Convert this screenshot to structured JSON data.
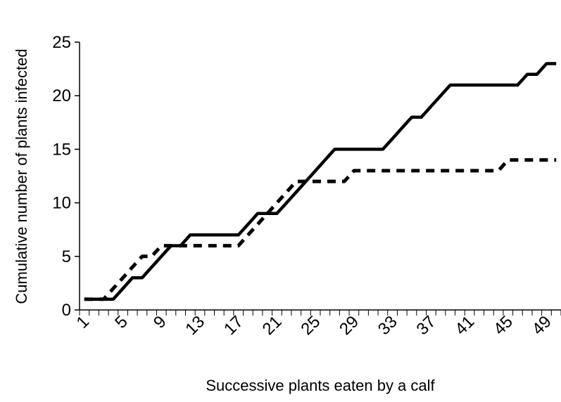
{
  "chart_data": {
    "type": "line",
    "title": "",
    "xlabel": "Successive plants eaten by a calf",
    "ylabel": "Cumulative number of plants infected",
    "x": [
      1,
      2,
      3,
      4,
      5,
      6,
      7,
      8,
      9,
      10,
      11,
      12,
      13,
      14,
      15,
      16,
      17,
      18,
      19,
      20,
      21,
      22,
      23,
      24,
      25,
      26,
      27,
      28,
      29,
      30,
      31,
      32,
      33,
      34,
      35,
      36,
      37,
      38,
      39,
      40,
      41,
      42,
      43,
      44,
      45,
      46,
      47,
      48,
      49,
      50
    ],
    "x_tick_labels": [
      "1",
      "5",
      "9",
      "13",
      "17",
      "21",
      "25",
      "29",
      "33",
      "37",
      "41",
      "45",
      "49"
    ],
    "ylim": [
      0,
      25
    ],
    "y_tick_labels": [
      "0",
      "5",
      "10",
      "15",
      "20",
      "25"
    ],
    "grid": false,
    "legend": "none",
    "series": [
      {
        "style": "solid",
        "color": "#000000",
        "values": [
          1,
          1,
          1,
          1,
          2,
          3,
          3,
          4,
          5,
          6,
          6,
          7,
          7,
          7,
          7,
          7,
          7,
          8,
          9,
          9,
          9,
          10,
          11,
          12,
          13,
          14,
          15,
          15,
          15,
          15,
          15,
          15,
          16,
          17,
          18,
          18,
          19,
          20,
          21,
          21,
          21,
          21,
          21,
          21,
          21,
          21,
          22,
          22,
          23,
          23
        ]
      },
      {
        "style": "dashed",
        "color": "#000000",
        "values": [
          1,
          1,
          1,
          2,
          3,
          4,
          5,
          5,
          6,
          6,
          6,
          6,
          6,
          6,
          6,
          6,
          6,
          7,
          8,
          9,
          10,
          11,
          12,
          12,
          12,
          12,
          12,
          12,
          13,
          13,
          13,
          13,
          13,
          13,
          13,
          13,
          13,
          13,
          13,
          13,
          13,
          13,
          13,
          13,
          14,
          14,
          14,
          14,
          14,
          14
        ]
      }
    ]
  }
}
